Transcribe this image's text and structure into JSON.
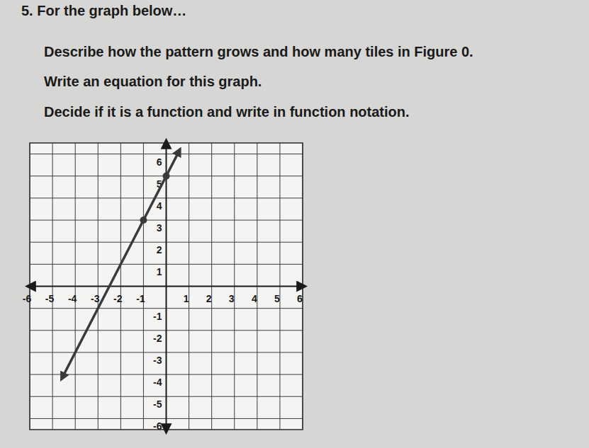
{
  "header": {
    "lines": [
      "5. For the graph below…",
      "Describe how the pattern grows and how many tiles in Figure 0.",
      "Write an equation for this graph.",
      "Decide if it is a function and write in function notation."
    ]
  },
  "chart_data": {
    "type": "line",
    "grid": true,
    "xlim": [
      -6,
      6
    ],
    "ylim": [
      -6.5,
      6.5
    ],
    "xticks": [
      -6,
      -5,
      -4,
      -3,
      -2,
      -1,
      1,
      2,
      3,
      4,
      5,
      6
    ],
    "yticks": [
      -6,
      -5,
      -4,
      -3,
      -2,
      -1,
      1,
      2,
      3,
      4,
      5,
      6
    ],
    "series": [
      {
        "type": "line",
        "color": "#3a3a3a",
        "marker": "arrow",
        "x": [
          -4.6,
          -1,
          0,
          0.6
        ],
        "values": [
          -4.2,
          3,
          5,
          6.2
        ]
      },
      {
        "type": "scatter",
        "color": "#3a3a3a",
        "marker": "circle",
        "x": [
          -1,
          0
        ],
        "values": [
          3,
          5
        ]
      }
    ]
  }
}
